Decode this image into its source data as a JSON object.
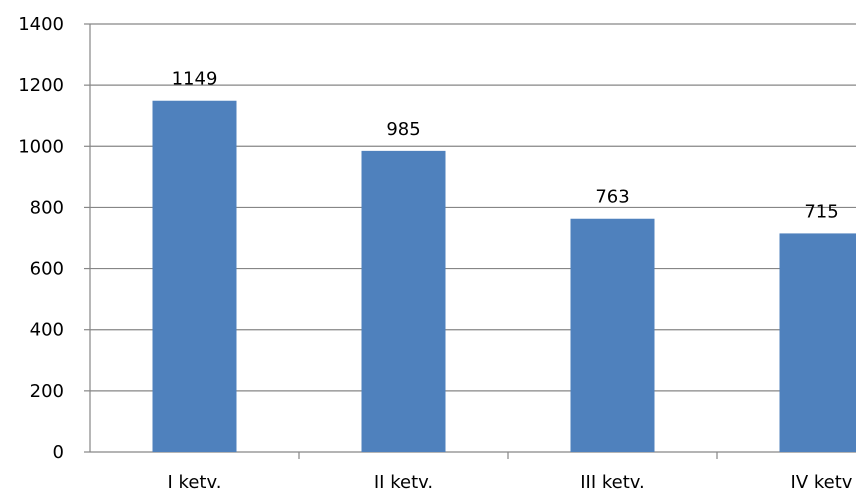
{
  "chart_data": {
    "type": "bar",
    "categories": [
      "I ketv.",
      "II ketv.",
      "III ketv.",
      "IV ketv"
    ],
    "values": [
      1149,
      985,
      763,
      715
    ],
    "data_labels": [
      "1149",
      "985",
      "763",
      "715"
    ],
    "yticks": [
      0,
      200,
      400,
      600,
      800,
      1000,
      1200,
      1400
    ],
    "ylim": [
      0,
      1400
    ],
    "grid": true,
    "legend": "none",
    "title": "",
    "xlabel": "",
    "ylabel": "",
    "colors": {
      "bar": "#4f81bd",
      "grid": "#868686",
      "axis": "#868686"
    }
  }
}
